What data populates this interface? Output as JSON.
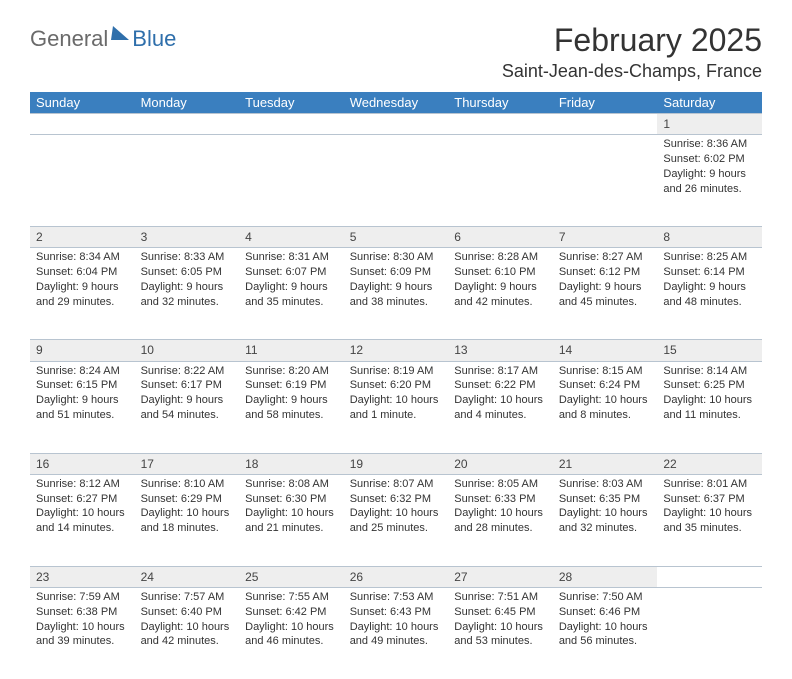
{
  "logo": {
    "word1": "General",
    "word2": "Blue"
  },
  "title": "February 2025",
  "location": "Saint-Jean-des-Champs, France",
  "day_headers": [
    "Sunday",
    "Monday",
    "Tuesday",
    "Wednesday",
    "Thursday",
    "Friday",
    "Saturday"
  ],
  "colors": {
    "header_bg": "#3a7fbf",
    "header_text": "#ffffff",
    "daynum_bg": "#eeeeee",
    "row_divider": "#b8c4d0",
    "logo_gray": "#6a6a6a",
    "logo_blue": "#2f6fab",
    "page_bg": "#ffffff"
  },
  "typography": {
    "title_fontsize": 32,
    "location_fontsize": 18,
    "header_fontsize": 13,
    "daynum_fontsize": 12,
    "cell_fontsize": 11
  },
  "weeks": [
    [
      null,
      null,
      null,
      null,
      null,
      null,
      {
        "n": "1",
        "sunrise": "Sunrise: 8:36 AM",
        "sunset": "Sunset: 6:02 PM",
        "daylight": "Daylight: 9 hours and 26 minutes."
      }
    ],
    [
      {
        "n": "2",
        "sunrise": "Sunrise: 8:34 AM",
        "sunset": "Sunset: 6:04 PM",
        "daylight": "Daylight: 9 hours and 29 minutes."
      },
      {
        "n": "3",
        "sunrise": "Sunrise: 8:33 AM",
        "sunset": "Sunset: 6:05 PM",
        "daylight": "Daylight: 9 hours and 32 minutes."
      },
      {
        "n": "4",
        "sunrise": "Sunrise: 8:31 AM",
        "sunset": "Sunset: 6:07 PM",
        "daylight": "Daylight: 9 hours and 35 minutes."
      },
      {
        "n": "5",
        "sunrise": "Sunrise: 8:30 AM",
        "sunset": "Sunset: 6:09 PM",
        "daylight": "Daylight: 9 hours and 38 minutes."
      },
      {
        "n": "6",
        "sunrise": "Sunrise: 8:28 AM",
        "sunset": "Sunset: 6:10 PM",
        "daylight": "Daylight: 9 hours and 42 minutes."
      },
      {
        "n": "7",
        "sunrise": "Sunrise: 8:27 AM",
        "sunset": "Sunset: 6:12 PM",
        "daylight": "Daylight: 9 hours and 45 minutes."
      },
      {
        "n": "8",
        "sunrise": "Sunrise: 8:25 AM",
        "sunset": "Sunset: 6:14 PM",
        "daylight": "Daylight: 9 hours and 48 minutes."
      }
    ],
    [
      {
        "n": "9",
        "sunrise": "Sunrise: 8:24 AM",
        "sunset": "Sunset: 6:15 PM",
        "daylight": "Daylight: 9 hours and 51 minutes."
      },
      {
        "n": "10",
        "sunrise": "Sunrise: 8:22 AM",
        "sunset": "Sunset: 6:17 PM",
        "daylight": "Daylight: 9 hours and 54 minutes."
      },
      {
        "n": "11",
        "sunrise": "Sunrise: 8:20 AM",
        "sunset": "Sunset: 6:19 PM",
        "daylight": "Daylight: 9 hours and 58 minutes."
      },
      {
        "n": "12",
        "sunrise": "Sunrise: 8:19 AM",
        "sunset": "Sunset: 6:20 PM",
        "daylight": "Daylight: 10 hours and 1 minute."
      },
      {
        "n": "13",
        "sunrise": "Sunrise: 8:17 AM",
        "sunset": "Sunset: 6:22 PM",
        "daylight": "Daylight: 10 hours and 4 minutes."
      },
      {
        "n": "14",
        "sunrise": "Sunrise: 8:15 AM",
        "sunset": "Sunset: 6:24 PM",
        "daylight": "Daylight: 10 hours and 8 minutes."
      },
      {
        "n": "15",
        "sunrise": "Sunrise: 8:14 AM",
        "sunset": "Sunset: 6:25 PM",
        "daylight": "Daylight: 10 hours and 11 minutes."
      }
    ],
    [
      {
        "n": "16",
        "sunrise": "Sunrise: 8:12 AM",
        "sunset": "Sunset: 6:27 PM",
        "daylight": "Daylight: 10 hours and 14 minutes."
      },
      {
        "n": "17",
        "sunrise": "Sunrise: 8:10 AM",
        "sunset": "Sunset: 6:29 PM",
        "daylight": "Daylight: 10 hours and 18 minutes."
      },
      {
        "n": "18",
        "sunrise": "Sunrise: 8:08 AM",
        "sunset": "Sunset: 6:30 PM",
        "daylight": "Daylight: 10 hours and 21 minutes."
      },
      {
        "n": "19",
        "sunrise": "Sunrise: 8:07 AM",
        "sunset": "Sunset: 6:32 PM",
        "daylight": "Daylight: 10 hours and 25 minutes."
      },
      {
        "n": "20",
        "sunrise": "Sunrise: 8:05 AM",
        "sunset": "Sunset: 6:33 PM",
        "daylight": "Daylight: 10 hours and 28 minutes."
      },
      {
        "n": "21",
        "sunrise": "Sunrise: 8:03 AM",
        "sunset": "Sunset: 6:35 PM",
        "daylight": "Daylight: 10 hours and 32 minutes."
      },
      {
        "n": "22",
        "sunrise": "Sunrise: 8:01 AM",
        "sunset": "Sunset: 6:37 PM",
        "daylight": "Daylight: 10 hours and 35 minutes."
      }
    ],
    [
      {
        "n": "23",
        "sunrise": "Sunrise: 7:59 AM",
        "sunset": "Sunset: 6:38 PM",
        "daylight": "Daylight: 10 hours and 39 minutes."
      },
      {
        "n": "24",
        "sunrise": "Sunrise: 7:57 AM",
        "sunset": "Sunset: 6:40 PM",
        "daylight": "Daylight: 10 hours and 42 minutes."
      },
      {
        "n": "25",
        "sunrise": "Sunrise: 7:55 AM",
        "sunset": "Sunset: 6:42 PM",
        "daylight": "Daylight: 10 hours and 46 minutes."
      },
      {
        "n": "26",
        "sunrise": "Sunrise: 7:53 AM",
        "sunset": "Sunset: 6:43 PM",
        "daylight": "Daylight: 10 hours and 49 minutes."
      },
      {
        "n": "27",
        "sunrise": "Sunrise: 7:51 AM",
        "sunset": "Sunset: 6:45 PM",
        "daylight": "Daylight: 10 hours and 53 minutes."
      },
      {
        "n": "28",
        "sunrise": "Sunrise: 7:50 AM",
        "sunset": "Sunset: 6:46 PM",
        "daylight": "Daylight: 10 hours and 56 minutes."
      },
      null
    ]
  ]
}
